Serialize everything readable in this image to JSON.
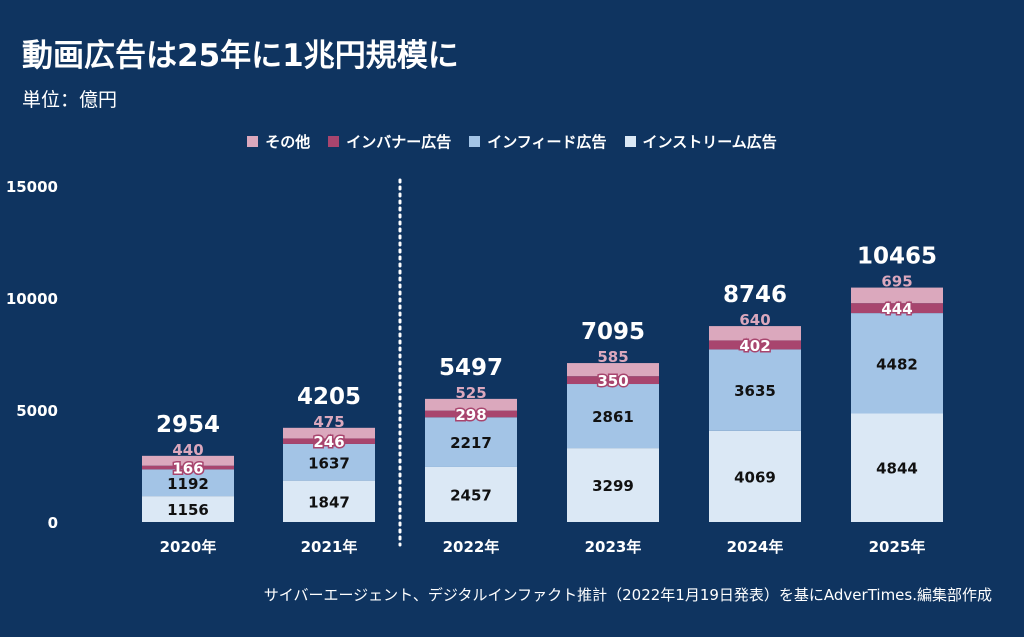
{
  "title": "動画広告は25年に1兆円規模に",
  "unit": "単位：億円",
  "source": "サイバーエージェント、デジタルインファクト推計（2022年1月19日発表）を基にAdverTimes.編集部作成",
  "colors": {
    "background": "#0f3460",
    "other": "#dba8bd",
    "banner": "#a8456e",
    "infeed": "#a3c4e6",
    "instream": "#dbe8f5",
    "other_label": "#dba8bd"
  },
  "legend": [
    {
      "key": "other",
      "label": "その他"
    },
    {
      "key": "banner",
      "label": "インバナー広告"
    },
    {
      "key": "infeed",
      "label": "インフィード広告"
    },
    {
      "key": "instream",
      "label": "インストリーム広告"
    }
  ],
  "chart_data": {
    "type": "bar",
    "stacked": true,
    "categories": [
      "2020年",
      "2021年",
      "2022年",
      "2023年",
      "2024年",
      "2025年"
    ],
    "series": [
      {
        "key": "instream",
        "name": "インストリーム広告",
        "values": [
          1156,
          1847,
          2457,
          3299,
          4069,
          4844
        ]
      },
      {
        "key": "infeed",
        "name": "インフィード広告",
        "values": [
          1192,
          1637,
          2217,
          2861,
          3635,
          4482
        ]
      },
      {
        "key": "banner",
        "name": "インバナー広告",
        "values": [
          166,
          246,
          298,
          350,
          402,
          444
        ]
      },
      {
        "key": "other",
        "name": "その他",
        "values": [
          440,
          475,
          525,
          585,
          640,
          695
        ]
      }
    ],
    "totals": [
      2954,
      4205,
      5497,
      7095,
      8746,
      10465
    ],
    "yticks": [
      0,
      5000,
      10000,
      15000
    ],
    "ylim": [
      0,
      15000
    ],
    "divider_after_index": 1,
    "title": "動画広告は25年に1兆円規模に",
    "ylabel": "単位：億円",
    "xlabel": ""
  }
}
